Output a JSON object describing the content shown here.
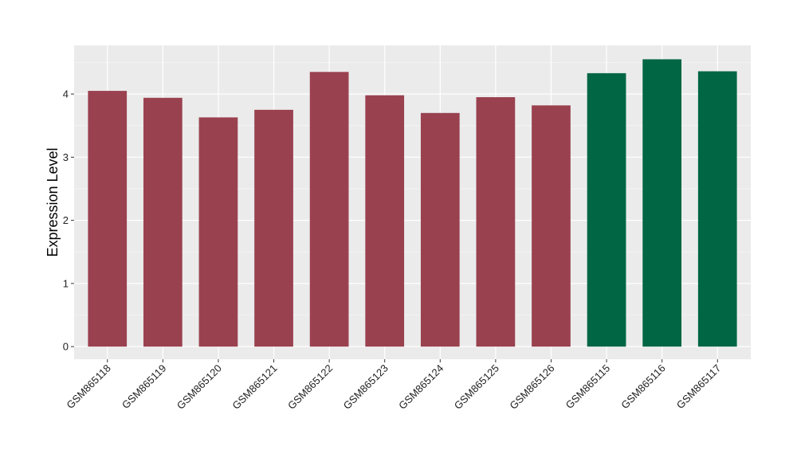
{
  "chart_data": {
    "type": "bar",
    "title": "",
    "xlabel": "",
    "ylabel": "Expression Level",
    "ylim": [
      -0.2,
      4.77
    ],
    "yticks": [
      0,
      1,
      2,
      3,
      4
    ],
    "grid": true,
    "categories": [
      "GSM865118",
      "GSM865119",
      "GSM865120",
      "GSM865121",
      "GSM865122",
      "GSM865123",
      "GSM865124",
      "GSM865125",
      "GSM865126",
      "GSM865115",
      "GSM865116",
      "GSM865117"
    ],
    "values": [
      4.05,
      3.94,
      3.63,
      3.75,
      4.35,
      3.98,
      3.7,
      3.95,
      3.82,
      4.33,
      4.55,
      4.36
    ],
    "groups": [
      "red",
      "red",
      "red",
      "red",
      "red",
      "red",
      "red",
      "red",
      "red",
      "green",
      "green",
      "green"
    ],
    "colors": {
      "red": "#9a4150",
      "green": "#006643",
      "panel": "#ebebeb",
      "grid_major": "#ffffff",
      "grid_minor": "#f5f5f5"
    }
  }
}
